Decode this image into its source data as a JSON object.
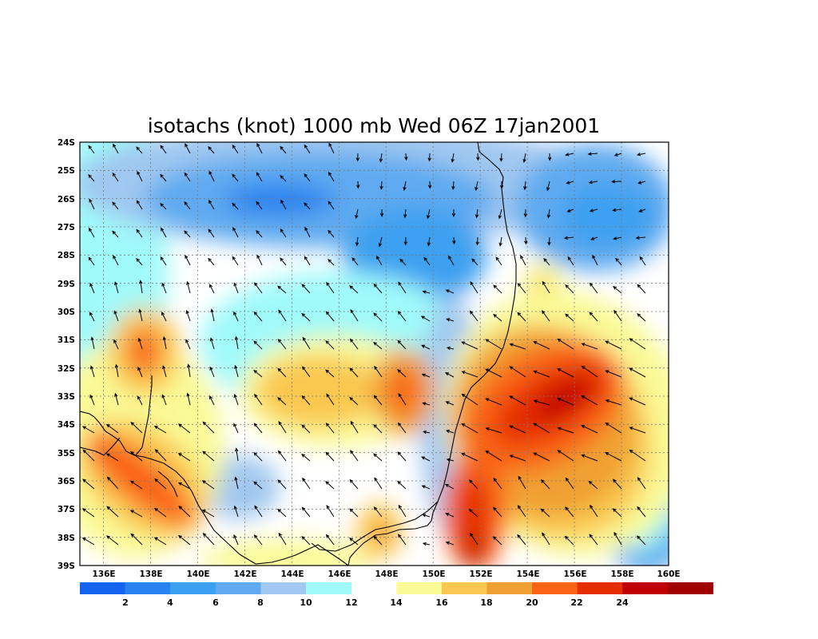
{
  "map": {
    "title": "isotachs (knot) 1000 mb Wed 06Z 17jan2001",
    "lon_range": [
      135,
      160
    ],
    "lat_range": [
      -39,
      -24
    ],
    "lat_ticks": [
      "24S",
      "25S",
      "26S",
      "27S",
      "28S",
      "29S",
      "30S",
      "31S",
      "32S",
      "33S",
      "34S",
      "35S",
      "36S",
      "37S",
      "38S",
      "39S"
    ],
    "lon_ticks": [
      "136E",
      "138E",
      "140E",
      "142E",
      "144E",
      "146E",
      "148E",
      "150E",
      "152E",
      "154E",
      "156E",
      "158E",
      "160E"
    ],
    "colorbar": {
      "labels": [
        "2",
        "4",
        "6",
        "8",
        "10",
        "12",
        "14",
        "16",
        "18",
        "20",
        "22",
        "24"
      ],
      "colors": [
        "#1464f0",
        "#2882f0",
        "#3ca0f0",
        "#5faaf0",
        "#a0c8f0",
        "#a0fafa",
        "#ffffff",
        "#fafa96",
        "#fac850",
        "#f0a032",
        "#fa6414",
        "#e62d00",
        "#c00000",
        "#a00000"
      ]
    },
    "wind_units": "knot",
    "level": "1000 mb"
  }
}
